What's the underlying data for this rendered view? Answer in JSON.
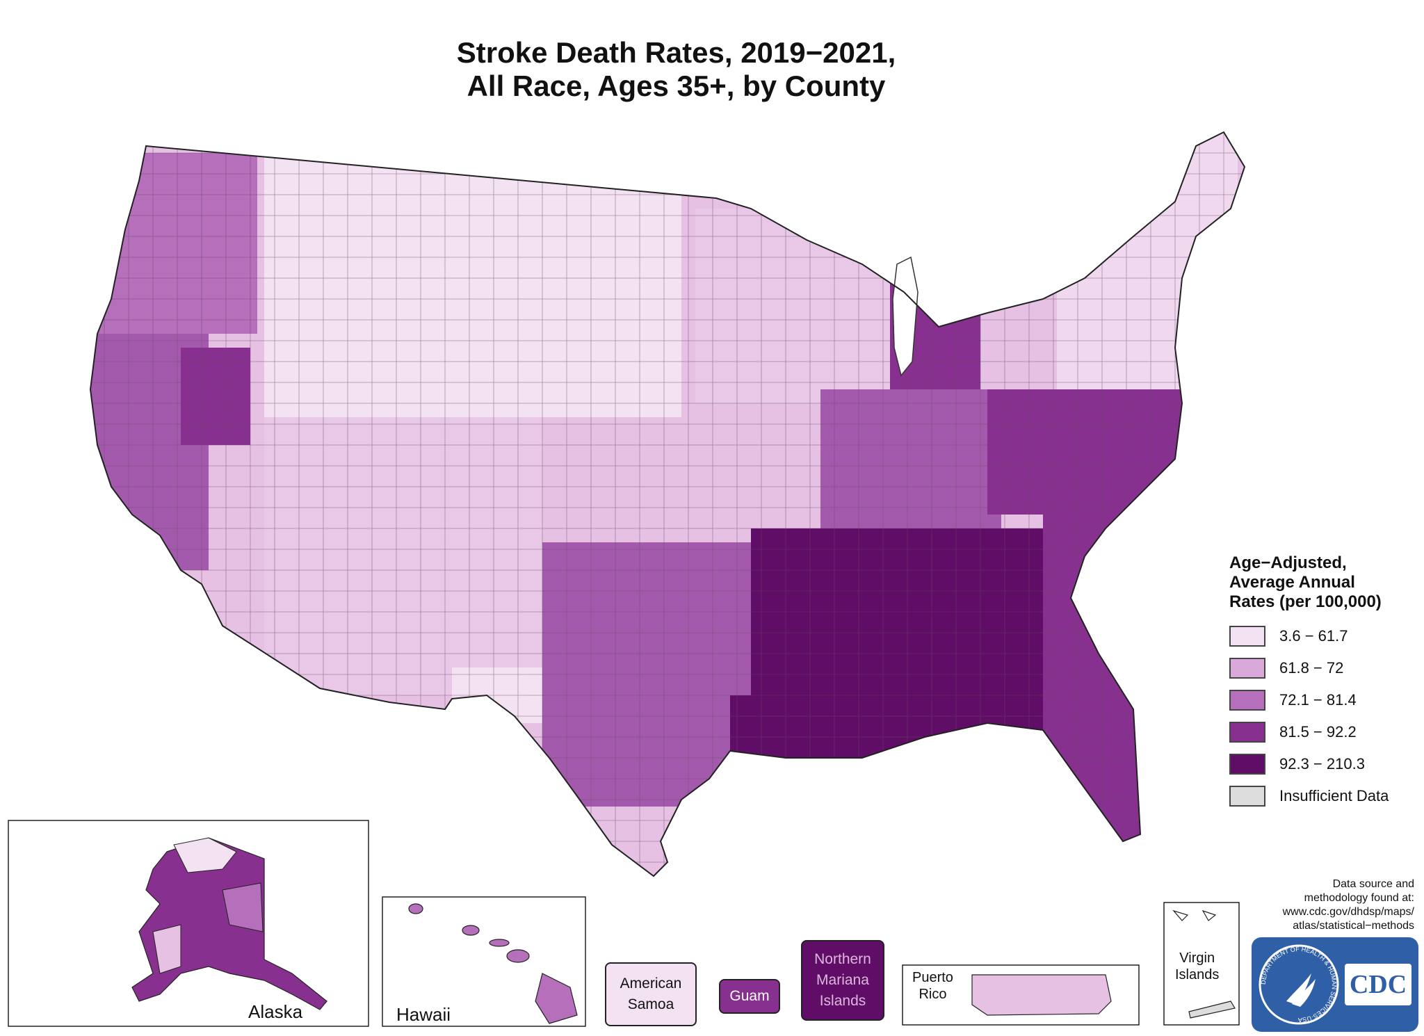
{
  "title": {
    "line1": "Stroke Death Rates, 2019−2021,",
    "line2": "All Race, Ages 35+, by County"
  },
  "legend": {
    "title_lines": [
      "Age−Adjusted,",
      "Average Annual",
      "Rates (per 100,000)"
    ],
    "classes": [
      {
        "label": "3.6 − 61.7",
        "color": "#f3e2f1"
      },
      {
        "label": "61.8 − 72",
        "color": "#d9a9da"
      },
      {
        "label": "72.1 − 81.4",
        "color": "#b56fbb"
      },
      {
        "label": "81.5 − 92.2",
        "color": "#88308f"
      },
      {
        "label": "92.3 − 210.3",
        "color": "#5f0d66"
      },
      {
        "label": "Insufficient Data",
        "color": "#dddddd"
      }
    ]
  },
  "insets": {
    "alaska": "Alaska",
    "hawaii": "Hawaii",
    "puerto_rico": "Puerto\nRico",
    "virgin_islands": "Virgin\nIslands"
  },
  "territories": {
    "american_samoa": {
      "label": "American\nSamoa",
      "color": "#f3e2f1"
    },
    "guam": {
      "label": "Guam",
      "color": "#88308f"
    },
    "northern_mariana": {
      "label": "Northern\nMariana\nIslands",
      "color": "#5f0d66"
    }
  },
  "source_note": "Data source and\nmethodology found at:\nwww.cdc.gov/dhdsp/maps/\natlas/statistical−methods",
  "logo": {
    "text": "CDC",
    "ring_text": "DEPARTMENT OF HEALTH & HUMAN SERVICES·USA"
  }
}
